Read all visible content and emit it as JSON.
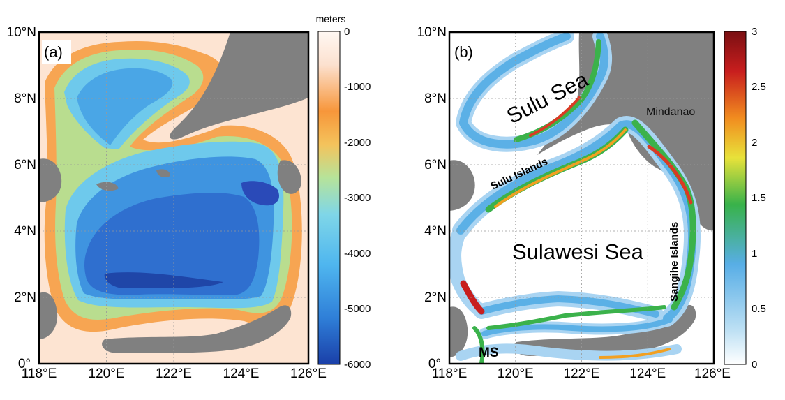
{
  "panels": [
    {
      "id": "a",
      "label": "(a)",
      "colorbar": {
        "unit": "meters",
        "ticks": [
          "0",
          "-1000",
          "-2000",
          "-3000",
          "-4000",
          "-5000",
          "-6000"
        ],
        "range": [
          -6000,
          0
        ],
        "colors": [
          "#1a3fa8",
          "#2f7fd8",
          "#4fb6ef",
          "#7fd6e8",
          "#b6e39a",
          "#f4c35c",
          "#f7963a",
          "#fce1cf",
          "#fff8f3"
        ]
      },
      "annotations": []
    },
    {
      "id": "b",
      "label": "(b)",
      "colorbar": {
        "unit": "",
        "ticks": [
          "3",
          "2.5",
          "2",
          "1.5",
          "1",
          "0.5",
          "0"
        ],
        "range": [
          0,
          3
        ],
        "colors": [
          "#ffffff",
          "#bfe1f4",
          "#58aee6",
          "#38b24a",
          "#e8e23a",
          "#f18c1f",
          "#c81e1e",
          "#7a0f12"
        ]
      },
      "annotations": {
        "sulu_sea": "Sulu Sea",
        "mindanao": "Mindanao",
        "sulu_islands": "Sulu Islands",
        "sulawesi_sea": "Sulawesi Sea",
        "sangihe_islands": "Sangihe Islands",
        "ms": "MS"
      }
    }
  ],
  "axes": {
    "x_ticks": [
      "118°E",
      "120°E",
      "122°E",
      "124°E",
      "126°E"
    ],
    "y_ticks": [
      "10°N",
      "8°N",
      "6°N",
      "4°N",
      "2°N",
      "0°"
    ],
    "lon_range": [
      118,
      126
    ],
    "lat_range": [
      0,
      10
    ],
    "grid": "dotted"
  },
  "style": {
    "land": "#808080",
    "shallow": "#fde4d2",
    "frame": "#000000"
  }
}
